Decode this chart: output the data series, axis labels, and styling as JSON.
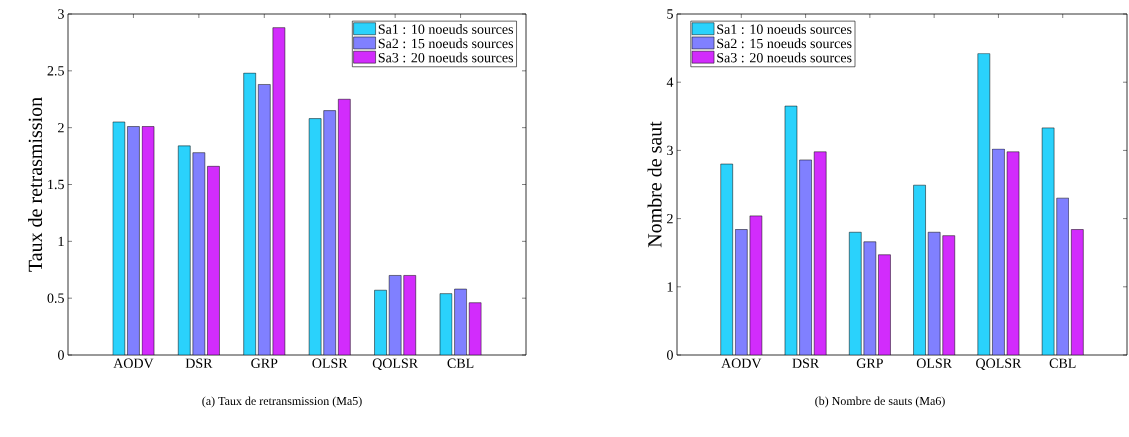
{
  "chart_data": [
    {
      "type": "bar",
      "ylabel": "Taux de retrasmission",
      "categories": [
        "AODV",
        "DSR",
        "GRP",
        "OLSR",
        "QOLSR",
        "CBL"
      ],
      "series": [
        {
          "name": "Sa1 : 10 noeuds sources",
          "color": "#2ad2fc",
          "values": [
            2.05,
            1.84,
            2.48,
            2.08,
            0.57,
            0.54
          ]
        },
        {
          "name": "Sa2 : 15 noeuds sources",
          "color": "#8080ff",
          "values": [
            2.01,
            1.78,
            2.38,
            2.15,
            0.7,
            0.58
          ]
        },
        {
          "name": "Sa3 : 20 noeuds sources",
          "color": "#d22cfc",
          "values": [
            2.01,
            1.66,
            2.88,
            2.25,
            0.7,
            0.46
          ]
        }
      ],
      "ylim": [
        0,
        3
      ],
      "yticks": [
        0,
        0.5,
        1,
        1.5,
        2,
        2.5,
        3
      ],
      "legend": "top right",
      "grid": false,
      "annotations": [
        "(a) Taux de retransmission (Ma5)"
      ]
    },
    {
      "type": "bar",
      "ylabel": "Nombre de saut",
      "categories": [
        "AODV",
        "DSR",
        "GRP",
        "OLSR",
        "QOLSR",
        "CBL"
      ],
      "series": [
        {
          "name": "Sa1 : 10 noeuds sources",
          "color": "#2ad2fc",
          "values": [
            2.8,
            3.65,
            1.8,
            2.49,
            4.42,
            3.33
          ]
        },
        {
          "name": "Sa2 : 15 noeuds sources",
          "color": "#8080ff",
          "values": [
            1.84,
            2.86,
            1.66,
            1.8,
            3.02,
            2.3
          ]
        },
        {
          "name": "Sa3 : 20 noeuds sources",
          "color": "#d22cfc",
          "values": [
            2.04,
            2.98,
            1.47,
            1.75,
            2.98,
            1.84
          ]
        }
      ],
      "ylim": [
        0,
        5
      ],
      "yticks": [
        0,
        1,
        2,
        3,
        4,
        5
      ],
      "legend": "top left",
      "grid": false,
      "annotations": [
        "(b) Nombre de sauts (Ma6)"
      ]
    }
  ]
}
